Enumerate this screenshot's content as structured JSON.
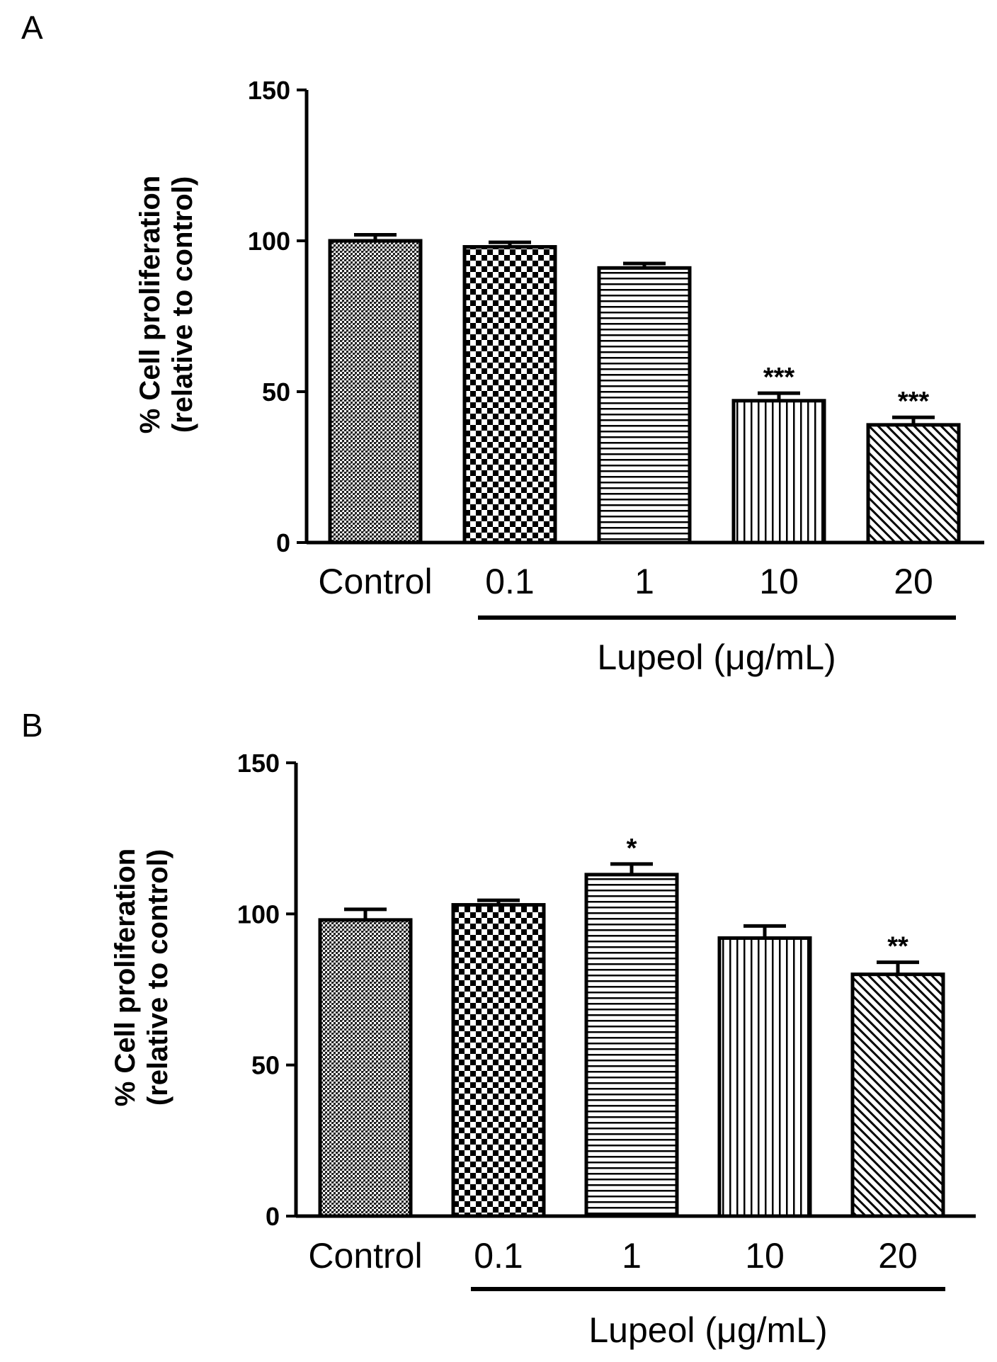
{
  "chart_data": [
    {
      "panel": "A",
      "type": "bar",
      "title": "",
      "categories": [
        "Control",
        "0.1",
        "1",
        "10",
        "20"
      ],
      "values": [
        100,
        98,
        91,
        47,
        39
      ],
      "errors": [
        2,
        1.5,
        1.5,
        2.5,
        2.5
      ],
      "significance": [
        "",
        "",
        "",
        "***",
        "***"
      ],
      "patterns": [
        "stipple",
        "checker",
        "hstripe",
        "vstripe",
        "diagonal"
      ],
      "ylabel_line1": "% Cell proliferation",
      "ylabel_line2": "(relative to control)",
      "xlabel": "Lupeol (μg/mL)",
      "yticks": [
        0,
        50,
        100,
        150
      ],
      "ylim": [
        0,
        150
      ]
    },
    {
      "panel": "B",
      "type": "bar",
      "title": "",
      "categories": [
        "Control",
        "0.1",
        "1",
        "10",
        "20"
      ],
      "values": [
        98,
        103,
        113,
        92,
        80
      ],
      "errors": [
        3.5,
        1.5,
        3.5,
        4,
        4
      ],
      "significance": [
        "",
        "",
        "*",
        "",
        "**"
      ],
      "patterns": [
        "stipple",
        "checker",
        "hstripe",
        "vstripe",
        "diagonal"
      ],
      "ylabel_line1": "% Cell proliferation",
      "ylabel_line2": "(relative to control)",
      "xlabel": "Lupeol (μg/mL)",
      "yticks": [
        0,
        50,
        100,
        150
      ],
      "ylim": [
        0,
        150
      ]
    }
  ]
}
